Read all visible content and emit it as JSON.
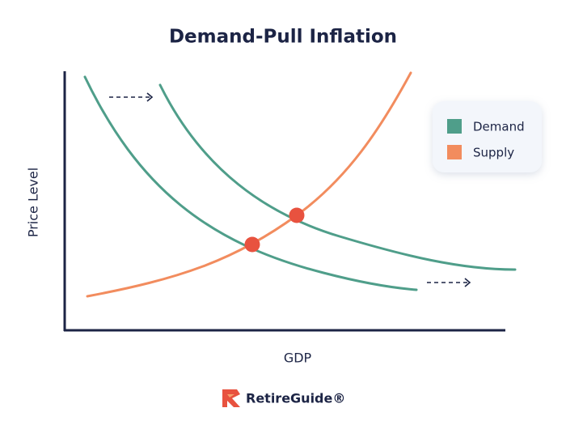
{
  "title": "Demand-Pull Inflation",
  "axes": {
    "x_label": "GDP",
    "y_label": "Price Level"
  },
  "legend": [
    {
      "name": "Demand",
      "color": "#4f9e8a"
    },
    {
      "name": "Supply",
      "color": "#f28c5e"
    }
  ],
  "brand": "RetireGuide®"
}
